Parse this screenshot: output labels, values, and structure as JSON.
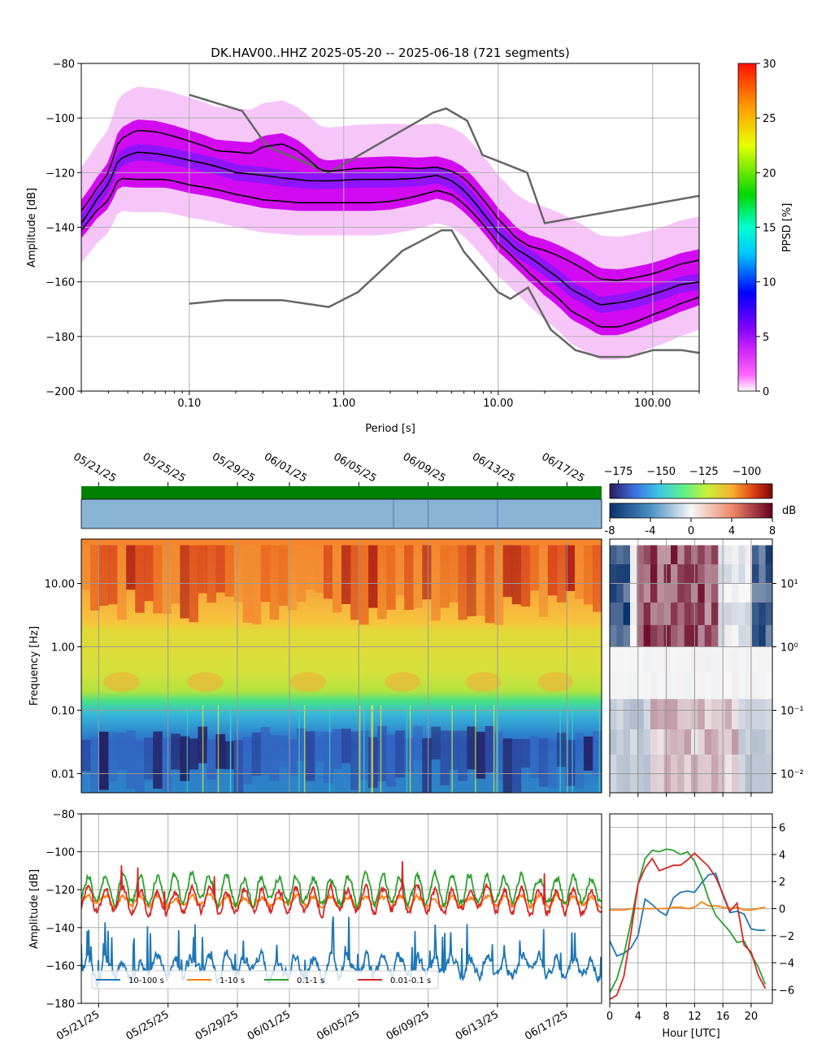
{
  "title": "DK.HAV00..HHZ   2025-05-20 -- 2025-06-18  (721 segments)",
  "chart_data": [
    {
      "id": "ppsd",
      "type": "heatmap",
      "xlabel": "Period [s]",
      "ylabel": "Amplitude [dB]",
      "x_scale": "log",
      "xlim": [
        0.02,
        200
      ],
      "ylim": [
        -200,
        -80
      ],
      "xticks": [
        {
          "v": 0.1,
          "label": "0.10"
        },
        {
          "v": 1,
          "label": "1.00"
        },
        {
          "v": 10,
          "label": "10.00"
        },
        {
          "v": 100,
          "label": "100.00"
        }
      ],
      "yticks": [
        -200,
        -180,
        -160,
        -140,
        -120,
        -100,
        -80
      ],
      "colorbar": {
        "label": "PPSD [%]",
        "min": 0,
        "max": 30,
        "ticks": [
          0,
          5,
          10,
          15,
          20,
          25,
          30
        ]
      },
      "grid": true,
      "noise_models": [
        {
          "name": "NHNM",
          "points": [
            [
              0.1,
              -91.5
            ],
            [
              0.22,
              -97.4
            ],
            [
              0.32,
              -110.5
            ],
            [
              0.8,
              -120
            ],
            [
              3.8,
              -98
            ],
            [
              4.6,
              -96.5
            ],
            [
              6.3,
              -101
            ],
            [
              7.9,
              -113.5
            ],
            [
              15.4,
              -120
            ],
            [
              20,
              -138.5
            ],
            [
              354.8,
              -126
            ]
          ]
        },
        {
          "name": "NLNM",
          "points": [
            [
              0.1,
              -168
            ],
            [
              0.17,
              -166.7
            ],
            [
              0.4,
              -166.7
            ],
            [
              0.8,
              -169.2
            ],
            [
              1.24,
              -163.7
            ],
            [
              2.4,
              -148.6
            ],
            [
              4.3,
              -141.1
            ],
            [
              5,
              -141.1
            ],
            [
              6,
              -149
            ],
            [
              10,
              -163.8
            ],
            [
              12,
              -166.2
            ],
            [
              15.6,
              -162.1
            ],
            [
              21.9,
              -177.5
            ],
            [
              31.6,
              -185
            ],
            [
              45,
              -187.5
            ],
            [
              70,
              -187.5
            ],
            [
              101,
              -185
            ],
            [
              154,
              -185
            ],
            [
              200,
              -186
            ]
          ]
        }
      ],
      "percentile_curves": [
        {
          "name": "upper",
          "points": [
            [
              0.02,
              -134
            ],
            [
              0.025,
              -126
            ],
            [
              0.03,
              -120
            ],
            [
              0.035,
              -108
            ],
            [
              0.045,
              -104.5
            ],
            [
              0.06,
              -105
            ],
            [
              0.1,
              -108.5
            ],
            [
              0.15,
              -112
            ],
            [
              0.25,
              -113
            ],
            [
              0.3,
              -110.5
            ],
            [
              0.4,
              -109.5
            ],
            [
              0.5,
              -112
            ],
            [
              0.7,
              -119
            ],
            [
              0.8,
              -119.5
            ],
            [
              1.2,
              -118.5
            ],
            [
              2,
              -118
            ],
            [
              3,
              -118.5
            ],
            [
              4,
              -118
            ],
            [
              5,
              -119.5
            ],
            [
              6,
              -122
            ],
            [
              8,
              -130
            ],
            [
              10,
              -137
            ],
            [
              13,
              -144
            ],
            [
              16,
              -147
            ],
            [
              20,
              -148.5
            ],
            [
              30,
              -153
            ],
            [
              45,
              -159
            ],
            [
              60,
              -159.5
            ],
            [
              100,
              -157
            ],
            [
              150,
              -153.5
            ],
            [
              200,
              -152
            ]
          ]
        },
        {
          "name": "median",
          "points": [
            [
              0.02,
              -138.5
            ],
            [
              0.025,
              -130
            ],
            [
              0.03,
              -124
            ],
            [
              0.035,
              -115
            ],
            [
              0.045,
              -112.5
            ],
            [
              0.06,
              -113
            ],
            [
              0.1,
              -115.5
            ],
            [
              0.2,
              -120
            ],
            [
              0.4,
              -122
            ],
            [
              0.6,
              -123
            ],
            [
              0.8,
              -123
            ],
            [
              1.2,
              -122.5
            ],
            [
              2,
              -122.5
            ],
            [
              3,
              -122
            ],
            [
              4,
              -121
            ],
            [
              5,
              -123
            ],
            [
              6,
              -126.5
            ],
            [
              8,
              -135
            ],
            [
              10,
              -142
            ],
            [
              13,
              -148
            ],
            [
              16,
              -151
            ],
            [
              20,
              -155
            ],
            [
              30,
              -163
            ],
            [
              45,
              -168.5
            ],
            [
              70,
              -167
            ],
            [
              100,
              -164.5
            ],
            [
              150,
              -161
            ],
            [
              200,
              -160
            ]
          ]
        },
        {
          "name": "lower",
          "points": [
            [
              0.02,
              -141
            ],
            [
              0.025,
              -134
            ],
            [
              0.03,
              -130
            ],
            [
              0.035,
              -122
            ],
            [
              0.045,
              -122.5
            ],
            [
              0.07,
              -122.5
            ],
            [
              0.1,
              -124.5
            ],
            [
              0.2,
              -128
            ],
            [
              0.3,
              -130
            ],
            [
              0.5,
              -131
            ],
            [
              0.8,
              -131
            ],
            [
              1.5,
              -131
            ],
            [
              2,
              -130.5
            ],
            [
              3,
              -128.5
            ],
            [
              4,
              -126.5
            ],
            [
              5,
              -128
            ],
            [
              6,
              -131.5
            ],
            [
              8,
              -139
            ],
            [
              10,
              -146
            ],
            [
              13,
              -152
            ],
            [
              16,
              -157
            ],
            [
              20,
              -162
            ],
            [
              30,
              -171
            ],
            [
              45,
              -176.5
            ],
            [
              60,
              -176.5
            ],
            [
              100,
              -172
            ],
            [
              150,
              -168
            ],
            [
              200,
              -165.5
            ]
          ]
        }
      ]
    },
    {
      "id": "spectrogram",
      "type": "heatmap",
      "ylabel": "Frequency [Hz]",
      "y_scale": "log",
      "ylim": [
        0.005,
        50
      ],
      "yticks": [
        {
          "v": 0.01,
          "label": "0.01"
        },
        {
          "v": 0.1,
          "label": "0.10"
        },
        {
          "v": 1,
          "label": "1.00"
        },
        {
          "v": 10,
          "label": "10.00"
        }
      ],
      "xlim": [
        "2025-05-20",
        "2025-06-19"
      ],
      "date_ticks": [
        {
          "date": "2025-05-21",
          "label": "05/21/25"
        },
        {
          "date": "2025-05-25",
          "label": "05/25/25"
        },
        {
          "date": "2025-05-29",
          "label": "05/29/25"
        },
        {
          "date": "2025-06-01",
          "label": "06/01/25"
        },
        {
          "date": "2025-06-05",
          "label": "06/05/25"
        },
        {
          "date": "2025-06-09",
          "label": "06/09/25"
        },
        {
          "date": "2025-06-13",
          "label": "06/13/25"
        },
        {
          "date": "2025-06-17",
          "label": "06/17/25"
        }
      ],
      "colorbar": {
        "min": -180,
        "max": -85,
        "ticks": [
          -175,
          -150,
          -125,
          -100
        ]
      },
      "grid": true,
      "data_availability": {
        "status_color": "#008000",
        "segment_color": "#8ab4d6",
        "gap_dates": [
          "2025-06-07",
          "2025-06-09",
          "2025-06-13"
        ]
      }
    },
    {
      "id": "diurnal_spectrogram",
      "type": "heatmap",
      "y_scale": "log",
      "yticks": [
        {
          "v": 0.01,
          "label": "10⁻²"
        },
        {
          "v": 0.1,
          "label": "10⁻¹"
        },
        {
          "v": 1,
          "label": "10⁰"
        },
        {
          "v": 10,
          "label": "10¹"
        }
      ],
      "colorbar": {
        "label": "dB",
        "min": -8,
        "max": 8,
        "ticks": [
          -8,
          -4,
          0,
          4,
          8
        ]
      }
    },
    {
      "id": "band_timeseries",
      "type": "line",
      "ylabel": "Amplitude [dB]",
      "ylim": [
        -180,
        -80
      ],
      "yticks": [
        -180,
        -160,
        -140,
        -120,
        -100,
        -80
      ],
      "grid": true,
      "legend": "bottom-left",
      "series": [
        {
          "name": "10-100 s",
          "color": "#1f77b4",
          "base": -161,
          "amplitude": 5,
          "noise": 4
        },
        {
          "name": "1-10 s",
          "color": "#ff7f0e",
          "base": -126,
          "amplitude": 2.5,
          "noise": 1.5
        },
        {
          "name": "0.1-1 s",
          "color": "#2ca02c",
          "base": -120,
          "amplitude": 7,
          "noise": 2.5
        },
        {
          "name": "0.01-0.1 s",
          "color": "#d62728",
          "base": -126,
          "amplitude": 6,
          "noise": 2.5
        }
      ]
    },
    {
      "id": "band_diurnal",
      "type": "line",
      "xlabel": "Hour [UTC]",
      "xlim": [
        0,
        23
      ],
      "ylim": [
        -7,
        7
      ],
      "xticks": [
        0,
        4,
        8,
        12,
        16,
        20
      ],
      "yticks": [
        -6,
        -4,
        -2,
        0,
        2,
        4,
        6
      ],
      "grid": true,
      "hours": [
        0,
        1,
        2,
        3,
        4,
        5,
        6,
        7,
        8,
        9,
        10,
        11,
        12,
        13,
        14,
        15,
        16,
        17,
        18,
        19,
        20,
        21,
        22
      ],
      "series": [
        {
          "name": "10-100 s",
          "color": "#1f77b4",
          "values": [
            -2.4,
            -3.5,
            -3.3,
            -2.9,
            -2.0,
            0.7,
            0.3,
            -0.2,
            -0.5,
            0.8,
            1.2,
            1.3,
            1.2,
            1.9,
            2.5,
            2.6,
            1.0,
            -0.3,
            -0.2,
            -0.4,
            -1.5,
            -1.6,
            -1.6
          ]
        },
        {
          "name": "1-10 s",
          "color": "#ff7f0e",
          "values": [
            -0.1,
            -0.1,
            -0.1,
            0.0,
            0.0,
            0.0,
            0.0,
            0.0,
            0.0,
            0.1,
            0.1,
            0.0,
            0.1,
            0.5,
            0.2,
            0.2,
            0.1,
            0.0,
            0.1,
            -0.1,
            -0.1,
            0.0,
            0.1
          ]
        },
        {
          "name": "0.1-1 s",
          "color": "#2ca02c",
          "values": [
            -6.2,
            -5.2,
            -3.4,
            -1.0,
            1.8,
            3.7,
            4.3,
            4.2,
            4.4,
            4.3,
            4.0,
            4.2,
            3.5,
            2.3,
            0.7,
            -0.5,
            -1.1,
            -1.7,
            -2.5,
            -2.4,
            -3.4,
            -4.3,
            -5.6
          ]
        },
        {
          "name": "0.01-0.1 s",
          "color": "#d62728",
          "values": [
            -6.7,
            -6.4,
            -5.0,
            -1.8,
            1.8,
            3.0,
            3.7,
            2.8,
            3.0,
            3.2,
            3.2,
            3.6,
            4.1,
            3.6,
            3.1,
            2.3,
            1.1,
            -0.2,
            0.4,
            -2.7,
            -3.2,
            -4.9,
            -5.9
          ]
        }
      ]
    }
  ]
}
